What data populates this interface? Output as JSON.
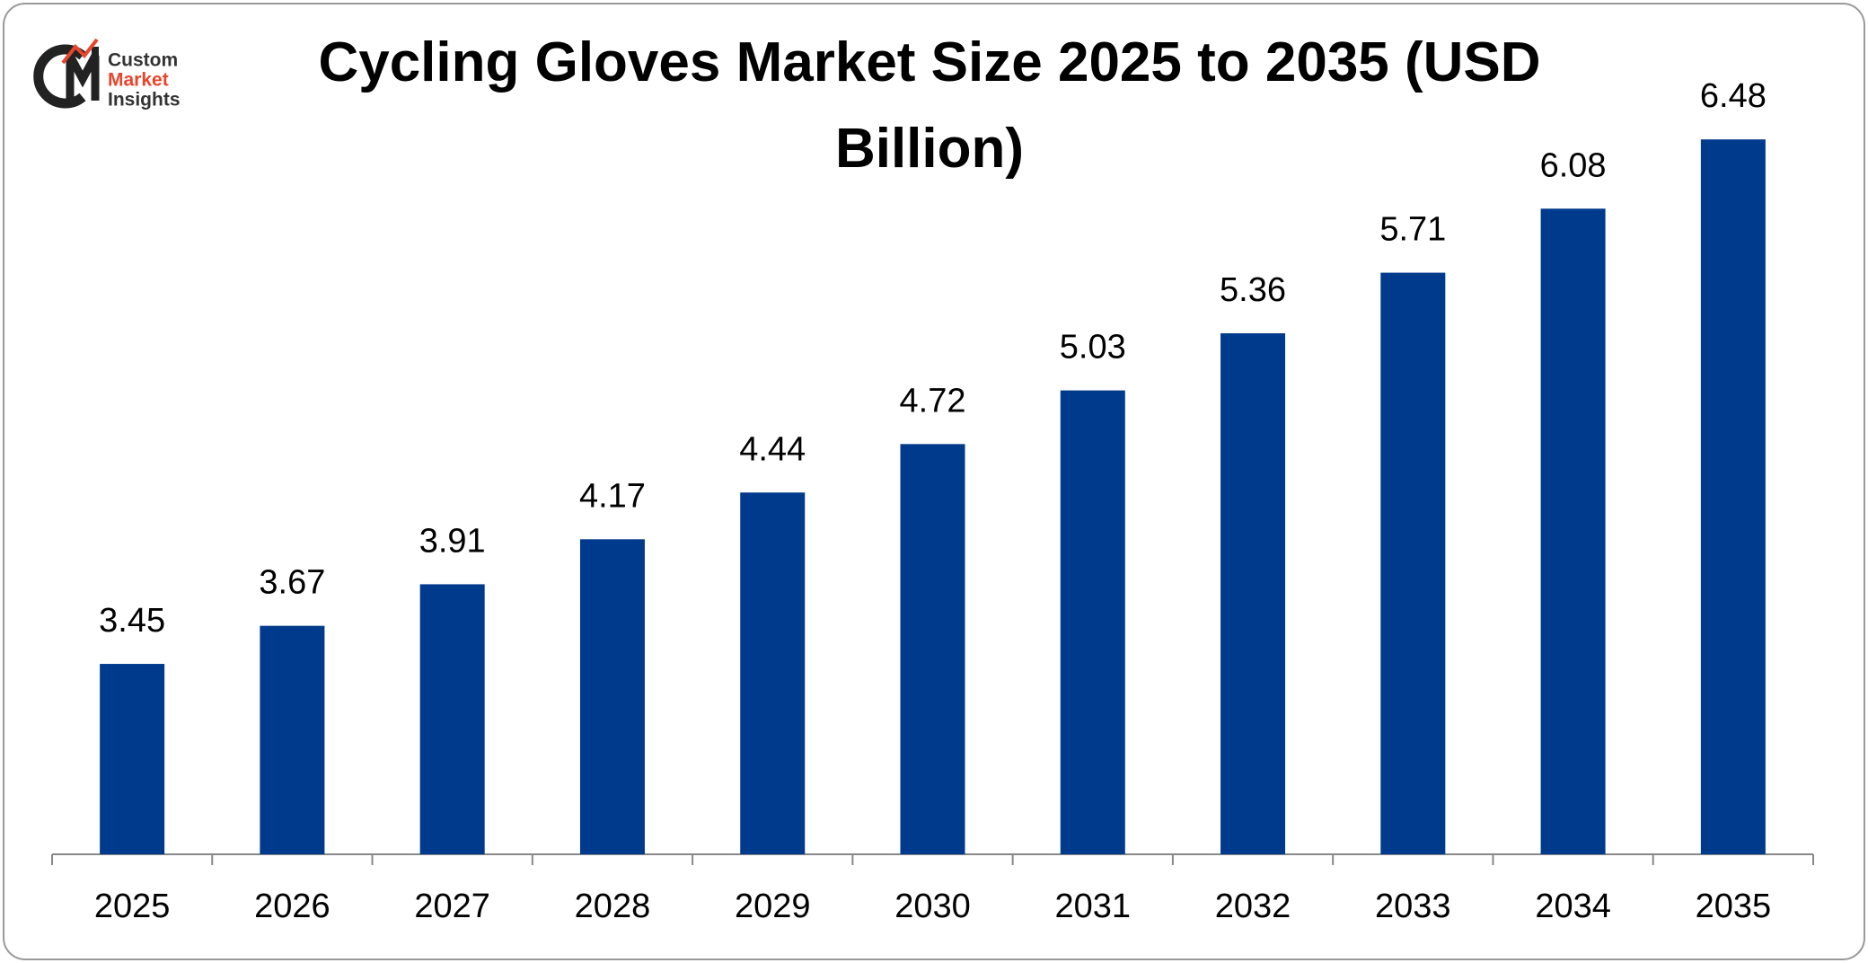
{
  "logo": {
    "lines": [
      "Custom",
      "Market",
      "Insights"
    ]
  },
  "chart_data": {
    "type": "bar",
    "title": "Cycling Gloves Market Size 2025 to 2035 (USD Billion)",
    "categories": [
      "2025",
      "2026",
      "2027",
      "2028",
      "2029",
      "2030",
      "2031",
      "2032",
      "2033",
      "2034",
      "2035"
    ],
    "values": [
      3.45,
      3.67,
      3.91,
      4.17,
      4.44,
      4.72,
      5.03,
      5.36,
      5.71,
      6.08,
      6.48
    ],
    "color": "#003a8c",
    "ylim": [
      2.35,
      7.0
    ],
    "grid": false
  }
}
